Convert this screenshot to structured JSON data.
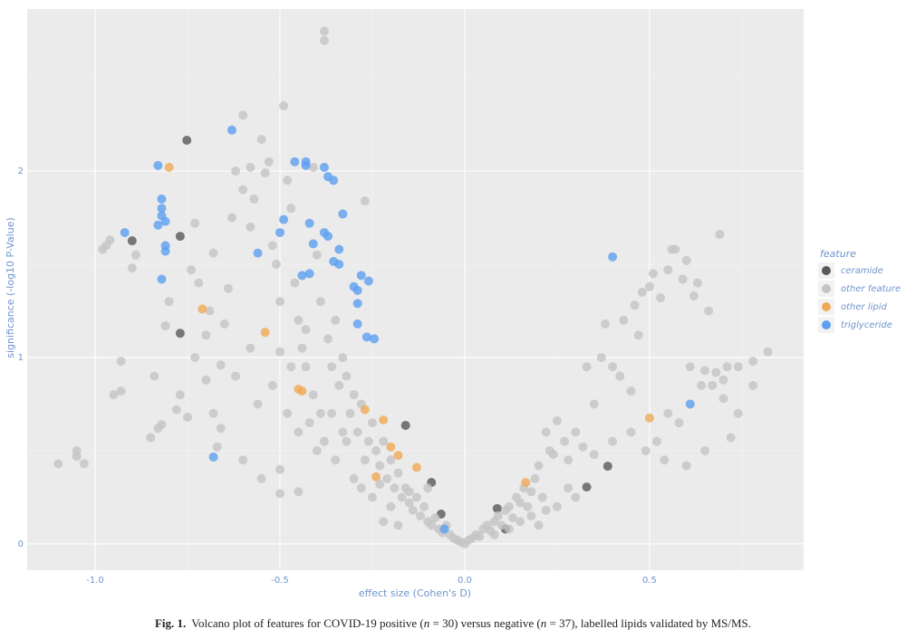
{
  "chart_data": {
    "type": "scatter",
    "x_label": "effect size (Cohen's D)",
    "y_label": "significance (-log10 P-Value)",
    "legend_title": "feature",
    "legend": "right",
    "grid": true,
    "xlim": [
      -1.184,
      0.917
    ],
    "ylim": [
      -0.141,
      2.869
    ],
    "xticks": [
      {
        "value": -1,
        "label": "-1.0"
      },
      -0.5,
      {
        "value": 0,
        "label": "0.0"
      },
      0.5
    ],
    "yticks": [
      0,
      1,
      2
    ],
    "xminor": [
      -0.75,
      -0.25,
      0.25,
      0.75
    ],
    "yminor": [
      0.5,
      1.5,
      2.5
    ],
    "series": [
      {
        "name": "ceramide",
        "color": "#595959",
        "x": [
          -0.752,
          -0.9,
          -0.77,
          -0.77,
          -0.16,
          -0.09,
          -0.064,
          0.088,
          0.11,
          0.33,
          0.387
        ],
        "values": [
          2.165,
          1.626,
          1.65,
          1.13,
          0.636,
          0.33,
          0.16,
          0.19,
          0.08,
          0.305,
          0.417
        ]
      },
      {
        "name": "other feature",
        "color": "#c4c4c4",
        "x": [
          -1.1,
          -1.05,
          -1.05,
          -1.03,
          -0.95,
          -0.93,
          -0.93,
          -0.97,
          -0.96,
          -0.98,
          -0.89,
          -0.9,
          -0.85,
          -0.83,
          -0.84,
          -0.82,
          -0.81,
          -0.8,
          -0.78,
          -0.77,
          -0.75,
          -0.74,
          -0.73,
          -0.72,
          -0.7,
          -0.68,
          -0.67,
          -0.66,
          -0.65,
          -0.64,
          -0.63,
          -0.62,
          -0.6,
          -0.6,
          -0.58,
          -0.58,
          -0.57,
          -0.55,
          -0.54,
          -0.53,
          -0.52,
          -0.51,
          -0.5,
          -0.49,
          -0.48,
          -0.47,
          -0.46,
          -0.45,
          -0.44,
          -0.43,
          -0.41,
          -0.4,
          -0.39,
          -0.38,
          -0.38,
          -0.37,
          -0.36,
          -0.35,
          -0.34,
          -0.33,
          -0.32,
          -0.31,
          -0.3,
          -0.29,
          -0.28,
          -0.27,
          -0.26,
          -0.25,
          -0.24,
          -0.23,
          -0.22,
          -0.21,
          -0.2,
          -0.19,
          -0.18,
          -0.17,
          -0.16,
          -0.15,
          -0.14,
          -0.13,
          -0.12,
          -0.11,
          -0.1,
          -0.09,
          -0.08,
          -0.07,
          -0.06,
          -0.05,
          -0.04,
          -0.03,
          -0.02,
          -0.01,
          0,
          0.01,
          0.02,
          0.03,
          0.04,
          0.05,
          0.06,
          0.07,
          0.08,
          0.09,
          0.1,
          0.11,
          0.12,
          0.13,
          0.14,
          0.15,
          0.16,
          0.17,
          0.18,
          0.19,
          0.2,
          0.21,
          0.22,
          0.23,
          0.24,
          0.25,
          0.27,
          0.28,
          0.3,
          0.32,
          0.33,
          0.35,
          0.37,
          0.38,
          0.4,
          0.42,
          0.43,
          0.45,
          0.46,
          0.47,
          0.48,
          0.49,
          0.5,
          0.51,
          0.52,
          0.53,
          0.54,
          0.55,
          0.56,
          0.57,
          0.58,
          0.59,
          0.6,
          0.61,
          0.62,
          0.63,
          0.64,
          0.65,
          0.66,
          0.67,
          0.68,
          0.69,
          0.7,
          0.71,
          0.72,
          0.74,
          0.78,
          0.78,
          0.82,
          -0.45,
          -0.5,
          -0.55,
          -0.6,
          -0.4,
          -0.35,
          -0.3,
          -0.28,
          -0.25,
          -0.2,
          -0.15,
          -0.1,
          -0.22,
          -0.18,
          -0.45,
          -0.5,
          -0.42,
          -0.38,
          -0.36,
          -0.33,
          -0.48,
          -0.52,
          -0.56,
          -0.58,
          -0.62,
          -0.66,
          -0.7,
          -0.73,
          -0.68,
          -0.69,
          -0.5,
          -0.47,
          -0.43,
          -0.41,
          -0.39,
          -0.32,
          -0.27,
          -0.23,
          0.12,
          0.08,
          0.15,
          0.18,
          0.2,
          0.22,
          0.25,
          0.28,
          0.3,
          0.35,
          0.4,
          0.45,
          0.55,
          0.6,
          0.65,
          0.7,
          0.74
        ],
        "values": [
          0.43,
          0.5,
          0.47,
          0.43,
          0.8,
          0.82,
          0.98,
          1.6,
          1.63,
          1.58,
          1.55,
          1.48,
          0.57,
          0.62,
          0.9,
          0.64,
          1.17,
          1.3,
          0.72,
          0.8,
          0.68,
          1.47,
          1.72,
          1.4,
          1.12,
          0.7,
          0.52,
          0.96,
          1.18,
          1.37,
          1.75,
          2.0,
          1.9,
          2.3,
          2.02,
          1.7,
          1.85,
          2.17,
          1.99,
          2.05,
          1.6,
          1.5,
          1.3,
          2.35,
          1.95,
          1.8,
          1.4,
          1.2,
          1.05,
          0.95,
          2.02,
          1.55,
          1.3,
          2.75,
          2.7,
          1.1,
          0.95,
          1.2,
          0.85,
          1.0,
          0.9,
          0.7,
          0.8,
          0.6,
          0.75,
          1.84,
          0.55,
          0.65,
          0.5,
          0.42,
          0.55,
          0.35,
          0.45,
          0.3,
          0.38,
          0.25,
          0.3,
          0.22,
          0.18,
          0.25,
          0.15,
          0.2,
          0.12,
          0.1,
          0.14,
          0.08,
          0.06,
          0.1,
          0.05,
          0.03,
          0.02,
          0.01,
          0,
          0.02,
          0.03,
          0.05,
          0.04,
          0.08,
          0.1,
          0.07,
          0.12,
          0.15,
          0.1,
          0.18,
          0.2,
          0.14,
          0.25,
          0.22,
          0.3,
          0.2,
          0.28,
          0.35,
          0.42,
          0.25,
          0.6,
          0.5,
          0.48,
          0.66,
          0.55,
          0.45,
          0.6,
          0.52,
          0.95,
          0.75,
          1.0,
          1.18,
          0.95,
          0.9,
          1.2,
          0.82,
          1.28,
          1.12,
          1.35,
          0.5,
          1.38,
          1.45,
          0.55,
          1.32,
          0.45,
          1.47,
          1.58,
          1.58,
          0.65,
          1.42,
          1.52,
          0.95,
          1.33,
          1.4,
          0.85,
          0.93,
          1.25,
          0.85,
          0.92,
          1.66,
          0.88,
          0.95,
          0.57,
          0.7,
          0.85,
          0.98,
          1.03,
          0.6,
          0.4,
          0.35,
          0.45,
          0.5,
          0.45,
          0.35,
          0.3,
          0.25,
          0.2,
          0.28,
          0.3,
          0.12,
          0.1,
          0.28,
          0.27,
          0.65,
          0.55,
          0.7,
          0.6,
          0.7,
          0.85,
          0.75,
          1.05,
          0.9,
          0.62,
          0.88,
          1.0,
          1.56,
          1.25,
          1.03,
          0.95,
          1.15,
          0.8,
          0.7,
          0.55,
          0.45,
          0.32,
          0.08,
          0.05,
          0.12,
          0.15,
          0.1,
          0.18,
          0.2,
          0.3,
          0.25,
          0.48,
          0.55,
          0.6,
          0.7,
          0.42,
          0.5,
          0.78,
          0.95
        ]
      },
      {
        "name": "other lipid",
        "color": "#f0aa55",
        "x": [
          -0.8,
          -0.71,
          -0.54,
          -0.45,
          -0.44,
          -0.27,
          -0.22,
          -0.2,
          -0.18,
          -0.24,
          -0.13,
          0.165,
          0.5
        ],
        "values": [
          2.02,
          1.26,
          1.135,
          0.83,
          0.82,
          0.72,
          0.665,
          0.52,
          0.475,
          0.36,
          0.41,
          0.33,
          0.675
        ]
      },
      {
        "name": "triglyceride",
        "color": "#5c9ff0",
        "x": [
          -0.63,
          -0.83,
          -0.82,
          -0.82,
          -0.82,
          -0.81,
          -0.83,
          -0.92,
          -0.81,
          -0.81,
          -0.82,
          -0.56,
          -0.49,
          -0.5,
          -0.46,
          -0.43,
          -0.43,
          -0.38,
          -0.37,
          -0.355,
          -0.42,
          -0.41,
          -0.38,
          -0.37,
          -0.33,
          -0.34,
          -0.355,
          -0.34,
          -0.44,
          -0.42,
          -0.28,
          -0.26,
          -0.3,
          -0.29,
          -0.29,
          -0.29,
          -0.265,
          -0.245,
          -0.68,
          0.4,
          0.61,
          -0.055
        ],
        "values": [
          2.22,
          2.03,
          1.85,
          1.8,
          1.76,
          1.73,
          1.71,
          1.67,
          1.6,
          1.57,
          1.42,
          1.56,
          1.74,
          1.67,
          2.05,
          2.03,
          2.05,
          2.02,
          1.97,
          1.95,
          1.72,
          1.61,
          1.67,
          1.65,
          1.77,
          1.58,
          1.515,
          1.5,
          1.44,
          1.45,
          1.44,
          1.41,
          1.38,
          1.36,
          1.29,
          1.18,
          1.11,
          1.1,
          0.466,
          1.54,
          0.75,
          0.08
        ]
      }
    ]
  },
  "caption": {
    "label": "Fig. 1.",
    "parts": [
      "Volcano plot of features for COVID-19 positive (",
      "n",
      " = 30) versus negative (",
      "n",
      " = 37), labelled lipids validated by MS/MS."
    ]
  }
}
